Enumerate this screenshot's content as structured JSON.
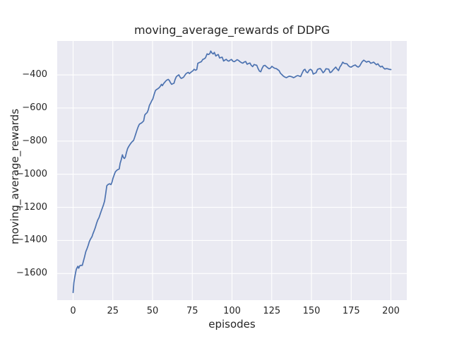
{
  "window": {
    "background": "#ffffff"
  },
  "chart_data": {
    "type": "line",
    "title": "moving_average_rewards of DDPG",
    "xlabel": "episodes",
    "ylabel": "moving_average_rewards",
    "xlim": [
      -10,
      210
    ],
    "ylim": [
      -1761,
      -195
    ],
    "xticks": [
      0,
      25,
      50,
      75,
      100,
      125,
      150,
      175,
      200
    ],
    "yticks": [
      -400,
      -600,
      -800,
      -1000,
      -1200,
      -1400,
      -1600
    ],
    "grid": true,
    "legend": "none",
    "style": {
      "plot_background": "#eaeaf2",
      "grid_color": "#ffffff",
      "line_color": "#4c72b0",
      "text_color": "#262626"
    },
    "series": [
      {
        "name": "moving_average_rewards",
        "color": "#4c72b0",
        "points": [
          [
            0,
            -1715
          ],
          [
            0.5,
            -1655
          ],
          [
            1,
            -1624
          ],
          [
            1.5,
            -1598
          ],
          [
            2,
            -1575
          ],
          [
            2.5,
            -1565
          ],
          [
            3,
            -1556
          ],
          [
            3.5,
            -1568
          ],
          [
            4.2,
            -1553
          ],
          [
            5,
            -1550
          ],
          [
            5.8,
            -1551
          ],
          [
            6.5,
            -1526
          ],
          [
            7.2,
            -1500
          ],
          [
            8,
            -1468
          ],
          [
            8.8,
            -1449
          ],
          [
            9.5,
            -1430
          ],
          [
            10.2,
            -1407
          ],
          [
            11,
            -1391
          ],
          [
            11.9,
            -1377
          ],
          [
            12.5,
            -1360
          ],
          [
            13.2,
            -1343
          ],
          [
            14,
            -1322
          ],
          [
            14.8,
            -1296
          ],
          [
            15.6,
            -1275
          ],
          [
            16.3,
            -1262
          ],
          [
            17.2,
            -1237
          ],
          [
            18,
            -1215
          ],
          [
            19,
            -1188
          ],
          [
            19.8,
            -1162
          ],
          [
            20.5,
            -1120
          ],
          [
            21.2,
            -1070
          ],
          [
            22,
            -1062
          ],
          [
            23,
            -1058
          ],
          [
            23.8,
            -1063
          ],
          [
            24.5,
            -1048
          ],
          [
            25,
            -1027
          ],
          [
            25.8,
            -1005
          ],
          [
            26.6,
            -986
          ],
          [
            27.4,
            -977
          ],
          [
            28.2,
            -972
          ],
          [
            29,
            -968
          ],
          [
            29.6,
            -934
          ],
          [
            30.3,
            -912
          ],
          [
            31,
            -883
          ],
          [
            31.7,
            -900
          ],
          [
            32.3,
            -905
          ],
          [
            32.9,
            -896
          ],
          [
            33.6,
            -868
          ],
          [
            34.3,
            -845
          ],
          [
            35,
            -832
          ],
          [
            35.8,
            -820
          ],
          [
            36.5,
            -811
          ],
          [
            37.3,
            -802
          ],
          [
            38,
            -797
          ],
          [
            38.7,
            -778
          ],
          [
            39.4,
            -757
          ],
          [
            40.1,
            -737
          ],
          [
            40.9,
            -715
          ],
          [
            41.6,
            -700
          ],
          [
            42.3,
            -694
          ],
          [
            43,
            -691
          ],
          [
            43.7,
            -685
          ],
          [
            44.4,
            -678
          ],
          [
            45.1,
            -642
          ],
          [
            45.8,
            -634
          ],
          [
            46.6,
            -628
          ],
          [
            47.3,
            -612
          ],
          [
            48,
            -585
          ],
          [
            48.8,
            -570
          ],
          [
            49.5,
            -556
          ],
          [
            50.2,
            -545
          ],
          [
            51,
            -517
          ],
          [
            51.8,
            -494
          ],
          [
            52.6,
            -488
          ],
          [
            53.4,
            -483
          ],
          [
            54.1,
            -478
          ],
          [
            54.8,
            -470
          ],
          [
            55.6,
            -457
          ],
          [
            56.2,
            -465
          ],
          [
            57,
            -452
          ],
          [
            57.7,
            -444
          ],
          [
            58.4,
            -436
          ],
          [
            59.2,
            -430
          ],
          [
            59.9,
            -427
          ],
          [
            60.6,
            -434
          ],
          [
            61.3,
            -447
          ],
          [
            62,
            -457
          ],
          [
            62.8,
            -453
          ],
          [
            63.5,
            -450
          ],
          [
            64.2,
            -428
          ],
          [
            65,
            -410
          ],
          [
            65.8,
            -404
          ],
          [
            66.6,
            -400
          ],
          [
            67.3,
            -413
          ],
          [
            68,
            -421
          ],
          [
            68.8,
            -418
          ],
          [
            69.5,
            -414
          ],
          [
            70.3,
            -403
          ],
          [
            71,
            -393
          ],
          [
            71.8,
            -388
          ],
          [
            72.5,
            -385
          ],
          [
            73.2,
            -392
          ],
          [
            74,
            -385
          ],
          [
            74.7,
            -380
          ],
          [
            75.5,
            -374
          ],
          [
            76.2,
            -366
          ],
          [
            77,
            -372
          ],
          [
            77.8,
            -368
          ],
          [
            78.5,
            -330
          ],
          [
            79.5,
            -325
          ],
          [
            80.7,
            -320
          ],
          [
            81.6,
            -307
          ],
          [
            82.5,
            -303
          ],
          [
            83.3,
            -297
          ],
          [
            84.3,
            -273
          ],
          [
            85.2,
            -277
          ],
          [
            86,
            -272
          ],
          [
            86.6,
            -256
          ],
          [
            87.4,
            -268
          ],
          [
            88.2,
            -274
          ],
          [
            88.9,
            -264
          ],
          [
            89.8,
            -286
          ],
          [
            90.6,
            -280
          ],
          [
            91.4,
            -277
          ],
          [
            92.2,
            -298
          ],
          [
            93,
            -295
          ],
          [
            93.8,
            -293
          ],
          [
            94.7,
            -316
          ],
          [
            95.6,
            -310
          ],
          [
            96.4,
            -306
          ],
          [
            97.2,
            -314
          ],
          [
            98,
            -317
          ],
          [
            98.9,
            -310
          ],
          [
            99.7,
            -307
          ],
          [
            100.6,
            -318
          ],
          [
            101.5,
            -320
          ],
          [
            102.3,
            -315
          ],
          [
            103.2,
            -308
          ],
          [
            104,
            -312
          ],
          [
            105,
            -320
          ],
          [
            105.9,
            -326
          ],
          [
            106.8,
            -329
          ],
          [
            107.7,
            -322
          ],
          [
            108.6,
            -319
          ],
          [
            109.5,
            -336
          ],
          [
            110.4,
            -331
          ],
          [
            111.3,
            -328
          ],
          [
            112.1,
            -342
          ],
          [
            113,
            -350
          ],
          [
            113.9,
            -337
          ],
          [
            114.8,
            -340
          ],
          [
            115.6,
            -342
          ],
          [
            116.4,
            -362
          ],
          [
            117.3,
            -377
          ],
          [
            118.1,
            -381
          ],
          [
            118.9,
            -361
          ],
          [
            119.8,
            -345
          ],
          [
            120.7,
            -342
          ],
          [
            121.6,
            -350
          ],
          [
            122.5,
            -357
          ],
          [
            123.4,
            -363
          ],
          [
            124.3,
            -358
          ],
          [
            125.1,
            -348
          ],
          [
            126,
            -355
          ],
          [
            126.9,
            -360
          ],
          [
            127.8,
            -362
          ],
          [
            128.7,
            -368
          ],
          [
            129.6,
            -374
          ],
          [
            130.5,
            -390
          ],
          [
            131.4,
            -398
          ],
          [
            132.4,
            -408
          ],
          [
            133.3,
            -413
          ],
          [
            134.2,
            -417
          ],
          [
            135.1,
            -412
          ],
          [
            136,
            -408
          ],
          [
            136.9,
            -409
          ],
          [
            137.8,
            -412
          ],
          [
            138.7,
            -417
          ],
          [
            139.6,
            -413
          ],
          [
            140.5,
            -407
          ],
          [
            141.4,
            -404
          ],
          [
            142.3,
            -407
          ],
          [
            143.2,
            -410
          ],
          [
            144.1,
            -390
          ],
          [
            145,
            -372
          ],
          [
            145.9,
            -366
          ],
          [
            146.7,
            -382
          ],
          [
            147.6,
            -387
          ],
          [
            148.5,
            -372
          ],
          [
            149.4,
            -366
          ],
          [
            150.3,
            -373
          ],
          [
            151.1,
            -395
          ],
          [
            152,
            -391
          ],
          [
            152.9,
            -387
          ],
          [
            153.8,
            -367
          ],
          [
            154.7,
            -363
          ],
          [
            155.6,
            -362
          ],
          [
            156.5,
            -374
          ],
          [
            157.3,
            -387
          ],
          [
            158.2,
            -379
          ],
          [
            159.1,
            -363
          ],
          [
            160,
            -364
          ],
          [
            160.9,
            -366
          ],
          [
            161.7,
            -386
          ],
          [
            162.6,
            -382
          ],
          [
            163.5,
            -371
          ],
          [
            164.4,
            -362
          ],
          [
            165.3,
            -353
          ],
          [
            166.1,
            -364
          ],
          [
            167,
            -374
          ],
          [
            167.9,
            -352
          ],
          [
            168.8,
            -340
          ],
          [
            169.7,
            -323
          ],
          [
            170.5,
            -330
          ],
          [
            171.4,
            -332
          ],
          [
            172.3,
            -333
          ],
          [
            173.2,
            -344
          ],
          [
            174.1,
            -351
          ],
          [
            175,
            -353
          ],
          [
            175.9,
            -347
          ],
          [
            176.7,
            -343
          ],
          [
            177.6,
            -340
          ],
          [
            178.5,
            -348
          ],
          [
            179.4,
            -353
          ],
          [
            180.3,
            -347
          ],
          [
            181.2,
            -332
          ],
          [
            182,
            -319
          ],
          [
            182.9,
            -311
          ],
          [
            183.8,
            -317
          ],
          [
            184.7,
            -323
          ],
          [
            185.6,
            -318
          ],
          [
            186.4,
            -319
          ],
          [
            187.3,
            -330
          ],
          [
            188.2,
            -327
          ],
          [
            189.1,
            -323
          ],
          [
            190,
            -331
          ],
          [
            190.9,
            -339
          ],
          [
            191.8,
            -333
          ],
          [
            192.7,
            -345
          ],
          [
            193.6,
            -352
          ],
          [
            194.5,
            -347
          ],
          [
            195.3,
            -357
          ],
          [
            196.2,
            -365
          ],
          [
            197.1,
            -362
          ],
          [
            198,
            -363
          ],
          [
            198.9,
            -366
          ],
          [
            200,
            -368
          ]
        ]
      }
    ]
  }
}
